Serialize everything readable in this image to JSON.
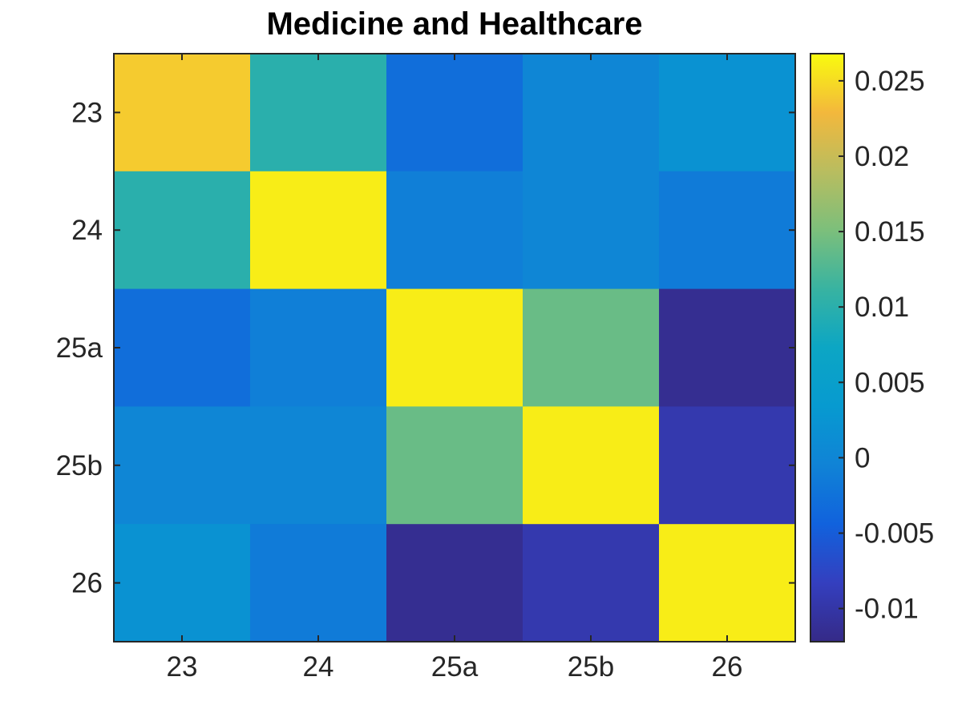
{
  "chart_data": {
    "type": "heatmap",
    "title": "Medicine and Healthcare",
    "xlabel": "",
    "ylabel": "",
    "x_categories": [
      "23",
      "24",
      "25a",
      "25b",
      "26"
    ],
    "y_categories": [
      "23",
      "24",
      "25a",
      "25b",
      "26"
    ],
    "values": [
      [
        0.024,
        0.01,
        -0.003,
        0.0,
        0.002
      ],
      [
        0.01,
        0.026,
        -0.001,
        0.0,
        -0.0015
      ],
      [
        -0.003,
        -0.001,
        0.026,
        0.014,
        -0.0115
      ],
      [
        0.0,
        0.0,
        0.014,
        0.026,
        -0.0095
      ],
      [
        0.002,
        -0.0015,
        -0.0115,
        -0.0095,
        0.026
      ]
    ],
    "colorbar": {
      "colormap": "parula",
      "range": [
        -0.0122,
        0.0268
      ],
      "ticks": [
        -0.01,
        -0.005,
        0,
        0.005,
        0.01,
        0.015,
        0.02,
        0.025
      ],
      "tick_labels": [
        "-0.01",
        "-0.005",
        "0",
        "0.005",
        "0.01",
        "0.015",
        "0.02",
        "0.025"
      ]
    },
    "grid": false
  }
}
